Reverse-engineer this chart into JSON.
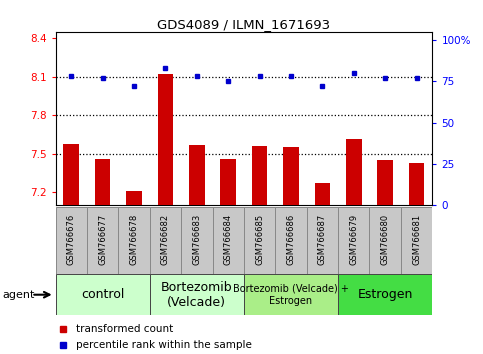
{
  "title": "GDS4089 / ILMN_1671693",
  "samples": [
    "GSM766676",
    "GSM766677",
    "GSM766678",
    "GSM766682",
    "GSM766683",
    "GSM766684",
    "GSM766685",
    "GSM766686",
    "GSM766687",
    "GSM766679",
    "GSM766680",
    "GSM766681"
  ],
  "red_values": [
    7.58,
    7.46,
    7.21,
    8.12,
    7.57,
    7.46,
    7.56,
    7.55,
    7.27,
    7.62,
    7.45,
    7.43
  ],
  "blue_values": [
    78,
    77,
    72,
    83,
    78,
    75,
    78,
    78,
    72,
    80,
    77,
    77
  ],
  "ylim_left": [
    7.1,
    8.45
  ],
  "ylim_right": [
    0,
    105
  ],
  "yticks_left": [
    7.2,
    7.5,
    7.8,
    8.1,
    8.4
  ],
  "yticks_right": [
    0,
    25,
    50,
    75,
    100
  ],
  "ytick_labels_right": [
    "0",
    "25",
    "50",
    "75",
    "100%"
  ],
  "hlines": [
    7.5,
    7.8,
    8.1
  ],
  "groups": [
    {
      "label": "control",
      "start": 0,
      "end": 3,
      "color": "#ccffcc",
      "fontsize": 9
    },
    {
      "label": "Bortezomib\n(Velcade)",
      "start": 3,
      "end": 6,
      "color": "#ccffcc",
      "fontsize": 9
    },
    {
      "label": "Bortezomib (Velcade) +\nEstrogen",
      "start": 6,
      "end": 9,
      "color": "#aaee88",
      "fontsize": 7
    },
    {
      "label": "Estrogen",
      "start": 9,
      "end": 12,
      "color": "#44dd44",
      "fontsize": 9
    }
  ],
  "bar_color": "#cc0000",
  "dot_color": "#0000cc",
  "bar_width": 0.5,
  "legend_items": [
    {
      "color": "#cc0000",
      "label": "transformed count"
    },
    {
      "color": "#0000cc",
      "label": "percentile rank within the sample"
    }
  ],
  "agent_label": "agent",
  "plot_bg_color": "#ffffff",
  "label_bg_color": "#c8c8c8",
  "label_border_color": "#888888"
}
